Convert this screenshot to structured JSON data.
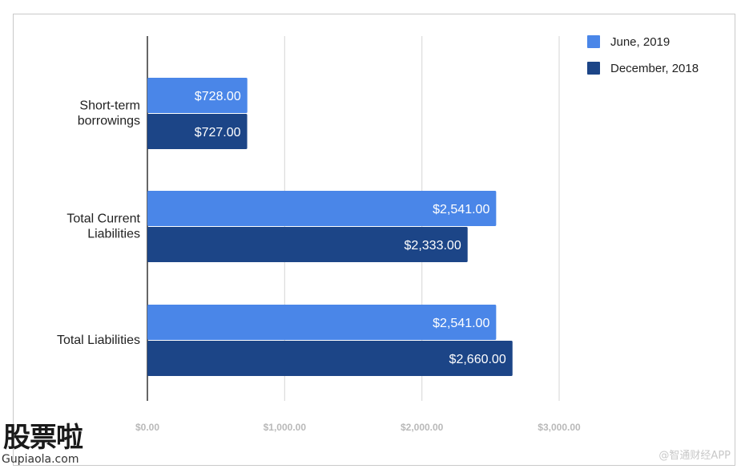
{
  "chart_data": {
    "type": "bar",
    "orientation": "horizontal",
    "categories": [
      "Short-term borrowings",
      "Total Current Liabilities",
      "Total Liabilities"
    ],
    "category_lines": [
      [
        "Short-term",
        "borrowings"
      ],
      [
        "Total Current",
        "Liabilities"
      ],
      [
        "Total Liabilities"
      ]
    ],
    "series": [
      {
        "name": "June, 2019",
        "color": "#4a86e8",
        "values": [
          728,
          2541,
          2541
        ],
        "labels": [
          "$728.00",
          "$2,541.00",
          "$2,541.00"
        ]
      },
      {
        "name": "December, 2018",
        "color": "#1c4587",
        "values": [
          727,
          2333,
          2660
        ],
        "labels": [
          "$727.00",
          "$2,333.00",
          "$2,660.00"
        ]
      }
    ],
    "xlim": [
      0,
      3000
    ],
    "xticks": [
      0,
      1000,
      2000,
      3000
    ],
    "xtick_labels": [
      "$0.00",
      "$1,000.00",
      "$2,000.00",
      "$3,000.00"
    ],
    "grid": true,
    "legend_position": "top-right"
  },
  "watermark": {
    "brand_cn": "股票啦",
    "brand_url": "Gupiaola.com",
    "source": "@智通财经APP"
  }
}
